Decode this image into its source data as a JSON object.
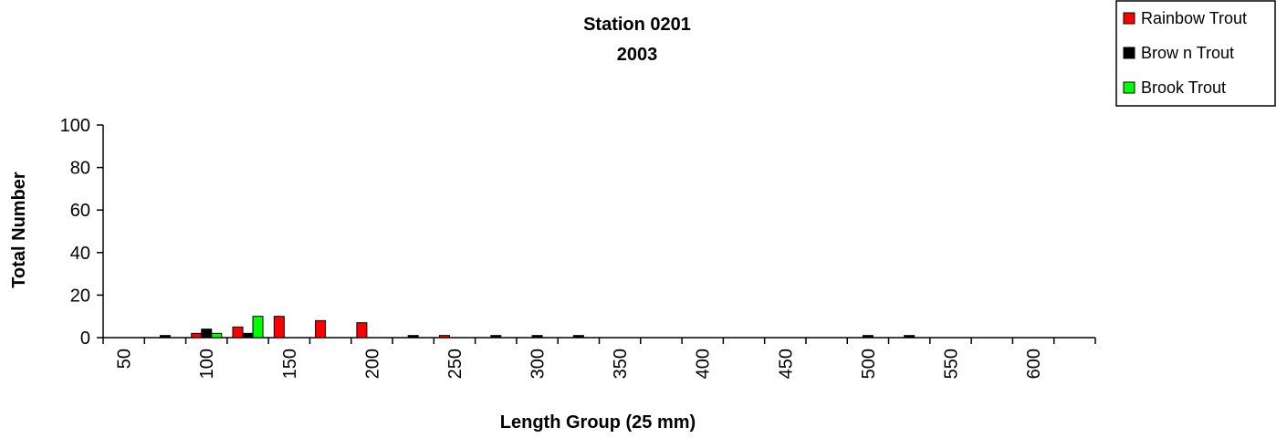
{
  "chart_data": {
    "type": "bar",
    "title_line1": "Station 0201",
    "title_line2": "2003",
    "xlabel": "Length Group (25 mm)",
    "ylabel": "Total Number",
    "ylim": [
      0,
      100
    ],
    "yticks": [
      "0",
      "20",
      "40",
      "60",
      "80",
      "100"
    ],
    "categories": [
      "50",
      "75",
      "100",
      "125",
      "150",
      "175",
      "200",
      "225",
      "250",
      "275",
      "300",
      "325",
      "350",
      "375",
      "400",
      "425",
      "450",
      "475",
      "500",
      "525",
      "550",
      "575",
      "600",
      "625"
    ],
    "tick_labels": [
      "50",
      "",
      "100",
      "",
      "150",
      "",
      "200",
      "",
      "250",
      "",
      "300",
      "",
      "350",
      "",
      "400",
      "",
      "450",
      "",
      "500",
      "",
      "550",
      "",
      "600",
      ""
    ],
    "grid": false,
    "legend_position": "top-right",
    "series": [
      {
        "name": "Rainbow  Trout",
        "color": "#ff0000",
        "values": [
          0,
          0,
          2,
          5,
          10,
          8,
          7,
          0,
          1,
          0,
          0,
          0,
          0,
          0,
          0,
          0,
          0,
          0,
          0,
          0,
          0,
          0,
          0,
          0
        ]
      },
      {
        "name": "Brow n Trout",
        "color": "#000000",
        "values": [
          0,
          1,
          4,
          2,
          0,
          0,
          0,
          1,
          0,
          1,
          1,
          1,
          0,
          0,
          0,
          0,
          0,
          0,
          1,
          1,
          0,
          0,
          0,
          0
        ]
      },
      {
        "name": "Brook Trout",
        "color": "#00ff00",
        "values": [
          0,
          0,
          2,
          10,
          0,
          0,
          0,
          0,
          0,
          0,
          0,
          0,
          0,
          0,
          0,
          0,
          0,
          0,
          0,
          0,
          0,
          0,
          0,
          0
        ]
      }
    ]
  }
}
